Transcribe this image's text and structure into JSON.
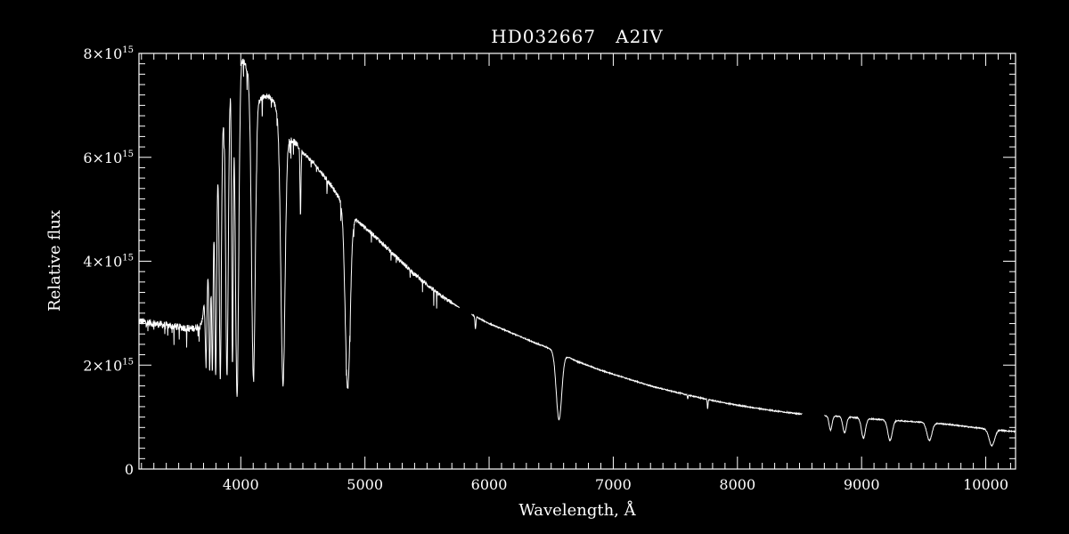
{
  "chart_data": {
    "type": "line",
    "title": "HD032667   A2IV",
    "xlabel": "Wavelength, Å",
    "ylabel": "Relative flux",
    "xlim": [
      3180,
      10240
    ],
    "ylim": [
      0,
      8000000000000000.0
    ],
    "xticks": [
      4000,
      5000,
      6000,
      7000,
      8000,
      9000,
      10000
    ],
    "xtick_labels": [
      "4000",
      "5000",
      "6000",
      "7000",
      "8000",
      "9000",
      "10000"
    ],
    "yticks": [
      0,
      2000000000000000.0,
      4000000000000000.0,
      6000000000000000.0,
      8000000000000000.0
    ],
    "ytick_labels": [
      {
        "base": "0",
        "exp": ""
      },
      {
        "base": "2×10",
        "exp": "15"
      },
      {
        "base": "4×10",
        "exp": "15"
      },
      {
        "base": "6×10",
        "exp": "15"
      },
      {
        "base": "8×10",
        "exp": "15"
      }
    ],
    "grid": false,
    "line_color": "#ffffff",
    "continuum": [
      [
        3180,
        2.85
      ],
      [
        3300,
        2.8
      ],
      [
        3450,
        2.75
      ],
      [
        3600,
        2.7
      ],
      [
        3680,
        2.75
      ],
      [
        3720,
        3.4
      ],
      [
        3760,
        4.5
      ],
      [
        3800,
        5.6
      ],
      [
        3850,
        6.5
      ],
      [
        3900,
        7.2
      ],
      [
        3950,
        7.6
      ],
      [
        4000,
        7.9
      ],
      [
        4030,
        7.85
      ],
      [
        4060,
        7.6
      ],
      [
        4100,
        7.3
      ],
      [
        4150,
        7.1
      ],
      [
        4200,
        7.2
      ],
      [
        4260,
        7.1
      ],
      [
        4300,
        6.85
      ],
      [
        4340,
        6.6
      ],
      [
        4400,
        6.35
      ],
      [
        4450,
        6.25
      ],
      [
        4500,
        6.1
      ],
      [
        4600,
        5.85
      ],
      [
        4700,
        5.55
      ],
      [
        4800,
        5.2
      ],
      [
        4860,
        4.95
      ],
      [
        4950,
        4.75
      ],
      [
        5050,
        4.55
      ],
      [
        5200,
        4.2
      ],
      [
        5400,
        3.75
      ],
      [
        5600,
        3.35
      ],
      [
        5800,
        3.05
      ],
      [
        6000,
        2.8
      ],
      [
        6200,
        2.6
      ],
      [
        6400,
        2.4
      ],
      [
        6560,
        2.25
      ],
      [
        6700,
        2.08
      ],
      [
        6900,
        1.9
      ],
      [
        7100,
        1.75
      ],
      [
        7300,
        1.6
      ],
      [
        7500,
        1.48
      ],
      [
        7700,
        1.37
      ],
      [
        7900,
        1.27
      ],
      [
        8100,
        1.19
      ],
      [
        8300,
        1.12
      ],
      [
        8500,
        1.06
      ],
      [
        8700,
        1.03
      ],
      [
        8900,
        1.0
      ],
      [
        9100,
        0.96
      ],
      [
        9300,
        0.93
      ],
      [
        9500,
        0.9
      ],
      [
        9700,
        0.86
      ],
      [
        9900,
        0.8
      ],
      [
        10100,
        0.75
      ],
      [
        10240,
        0.72
      ]
    ],
    "absorption_lines": [
      {
        "wavelength": 3720,
        "min_flux": 2.0,
        "width": 6
      },
      {
        "wavelength": 3750,
        "min_flux": 1.9,
        "width": 6
      },
      {
        "wavelength": 3771,
        "min_flux": 1.85,
        "width": 6
      },
      {
        "wavelength": 3798,
        "min_flux": 1.8,
        "width": 7
      },
      {
        "wavelength": 3835,
        "min_flux": 1.75,
        "width": 8
      },
      {
        "wavelength": 3889,
        "min_flux": 1.8,
        "width": 10
      },
      {
        "wavelength": 3933,
        "min_flux": 2.0,
        "width": 6
      },
      {
        "wavelength": 3970,
        "min_flux": 1.4,
        "width": 13
      },
      {
        "wavelength": 4102,
        "min_flux": 1.75,
        "width": 15
      },
      {
        "wavelength": 4340,
        "min_flux": 1.65,
        "width": 17
      },
      {
        "wavelength": 4481,
        "min_flux": 4.9,
        "width": 4
      },
      {
        "wavelength": 4861,
        "min_flux": 1.55,
        "width": 20
      },
      {
        "wavelength": 5890,
        "min_flux": 2.7,
        "width": 4
      },
      {
        "wavelength": 6563,
        "min_flux": 0.95,
        "width": 22
      },
      {
        "wavelength": 7600,
        "min_flux": 1.35,
        "width": 3
      },
      {
        "wavelength": 7760,
        "min_flux": 1.15,
        "width": 3
      },
      {
        "wavelength": 8750,
        "min_flux": 0.75,
        "width": 12
      },
      {
        "wavelength": 8863,
        "min_flux": 0.7,
        "width": 14
      },
      {
        "wavelength": 9015,
        "min_flux": 0.6,
        "width": 16
      },
      {
        "wavelength": 9229,
        "min_flux": 0.55,
        "width": 18
      },
      {
        "wavelength": 9546,
        "min_flux": 0.55,
        "width": 20
      },
      {
        "wavelength": 10049,
        "min_flux": 0.45,
        "width": 22
      }
    ],
    "data_gaps": [
      [
        5760,
        5860
      ],
      [
        8520,
        8700
      ]
    ],
    "flux_unit_scale": 1000000000000000.0
  }
}
